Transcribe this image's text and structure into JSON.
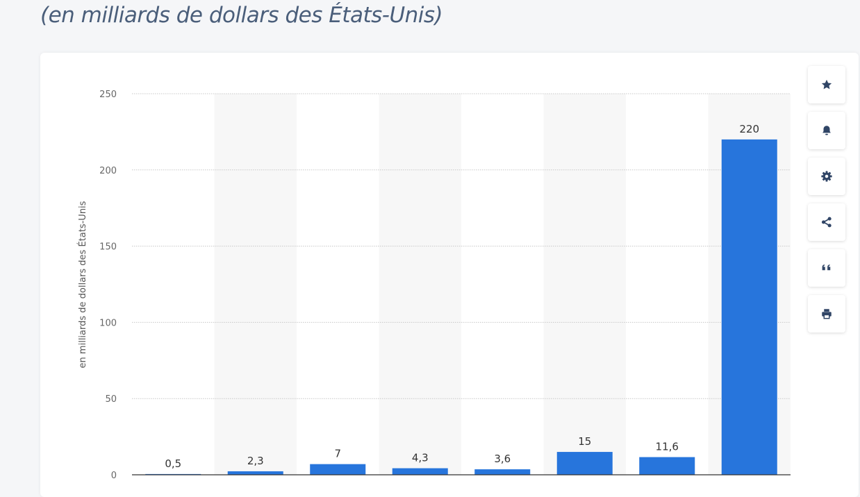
{
  "page": {
    "subtitle": "(en milliards de dollars des États-Unis)"
  },
  "toolbar": {
    "buttons": [
      {
        "name": "favorite-button",
        "icon": "star-icon"
      },
      {
        "name": "notification-button",
        "icon": "bell-icon"
      },
      {
        "name": "settings-button",
        "icon": "gear-icon"
      },
      {
        "name": "share-button",
        "icon": "share-icon"
      },
      {
        "name": "cite-button",
        "icon": "quote-icon"
      },
      {
        "name": "print-button",
        "icon": "printer-icon"
      }
    ]
  },
  "colors": {
    "bar": "#2775dc",
    "band": "#f7f7f7",
    "grid": "#c8c8c8",
    "icon": "#304566"
  },
  "chart_data": {
    "type": "bar",
    "title": "",
    "ylabel": "en milliards de dollars des États-Unis",
    "xlabel": "",
    "ylim": [
      0,
      250
    ],
    "yticks": [
      0,
      50,
      100,
      150,
      200,
      250
    ],
    "ytick_labels": [
      "0",
      "50",
      "100",
      "150",
      "200",
      "250"
    ],
    "grid": true,
    "values": [
      0.5,
      2.3,
      7,
      4.3,
      3.6,
      15,
      11.6,
      220
    ],
    "value_labels": [
      "0,5",
      "2,3",
      "7",
      "4,3",
      "3,6",
      "15",
      "11,6",
      "220"
    ]
  }
}
